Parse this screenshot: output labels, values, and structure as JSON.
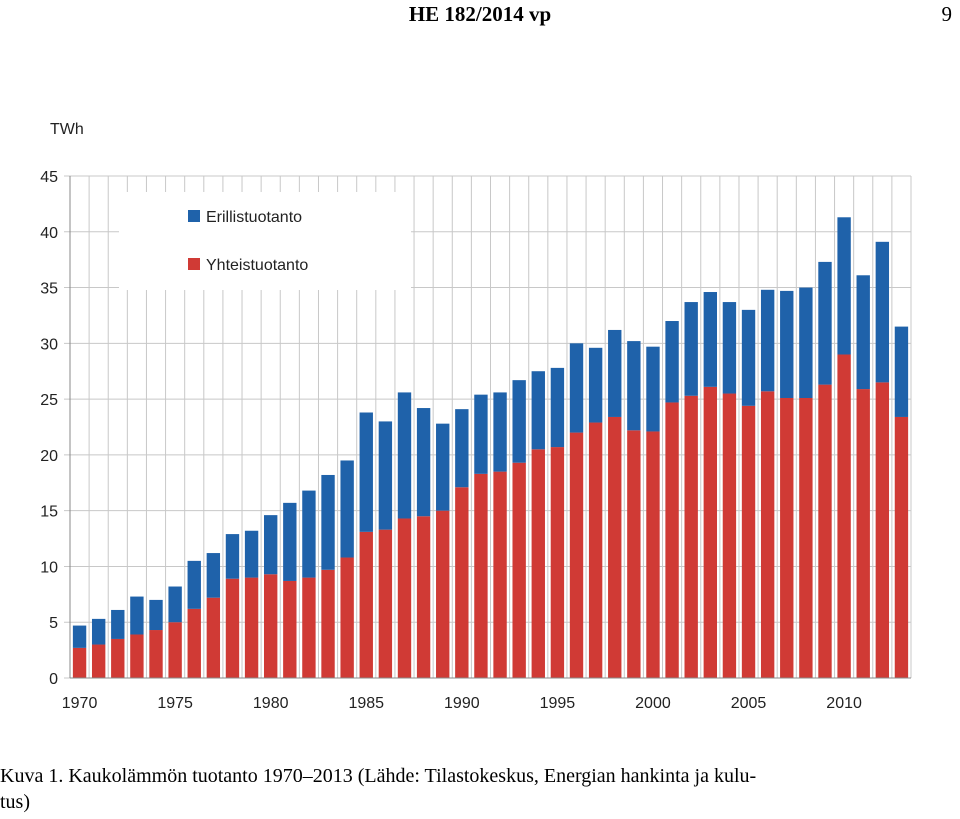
{
  "header": {
    "title": "HE 182/2014 vp",
    "page_number": "9"
  },
  "caption": {
    "text": "Kuva 1. Kaukolämmön tuotanto 1970–2013 (Lähde: Tilastokeskus, Energian hankinta ja kulu-\ntus)"
  },
  "chart_data": {
    "type": "bar",
    "stacked": true,
    "unit_label": "TWh",
    "x": [
      1970,
      1971,
      1972,
      1973,
      1974,
      1975,
      1976,
      1977,
      1978,
      1979,
      1980,
      1981,
      1982,
      1983,
      1984,
      1985,
      1986,
      1987,
      1988,
      1989,
      1990,
      1991,
      1992,
      1993,
      1994,
      1995,
      1996,
      1997,
      1998,
      1999,
      2000,
      2001,
      2002,
      2003,
      2004,
      2005,
      2006,
      2007,
      2008,
      2009,
      2010,
      2011,
      2012,
      2013
    ],
    "x_tick_labels": [
      "1970",
      "1975",
      "1980",
      "1985",
      "1990",
      "1995",
      "2000",
      "2005",
      "2010"
    ],
    "x_tick_values": [
      1970,
      1975,
      1980,
      1985,
      1990,
      1995,
      2000,
      2005,
      2010
    ],
    "ylim": [
      0,
      45
    ],
    "y_ticks": [
      0,
      5,
      10,
      15,
      20,
      25,
      30,
      35,
      40,
      45
    ],
    "grid": true,
    "legend_position": "top-left",
    "series": [
      {
        "name": "Yhteistuotanto",
        "color": "#d03a35",
        "values": [
          2.7,
          3.0,
          3.5,
          3.9,
          4.3,
          5.0,
          6.2,
          7.2,
          8.9,
          9.0,
          9.3,
          8.7,
          9.0,
          9.7,
          10.8,
          13.1,
          13.3,
          14.3,
          14.5,
          15.0,
          17.1,
          18.3,
          18.5,
          19.3,
          20.5,
          20.7,
          22.0,
          22.9,
          23.4,
          22.2,
          22.1,
          24.7,
          25.3,
          26.1,
          25.5,
          24.4,
          25.7,
          25.1,
          25.1,
          26.3,
          29.0,
          25.9,
          26.5,
          23.4
        ]
      },
      {
        "name": "Erillistuotanto",
        "color": "#1f62aa",
        "values": [
          2.0,
          2.3,
          2.6,
          3.4,
          2.7,
          3.2,
          4.3,
          4.0,
          4.0,
          4.2,
          5.3,
          7.0,
          7.8,
          8.5,
          8.7,
          10.7,
          9.7,
          11.3,
          9.7,
          7.8,
          7.0,
          7.1,
          7.1,
          7.4,
          7.0,
          7.1,
          8.0,
          6.7,
          7.8,
          8.0,
          7.6,
          7.3,
          8.4,
          8.5,
          8.2,
          8.6,
          9.1,
          9.6,
          9.9,
          11.0,
          12.3,
          10.2,
          12.6,
          8.1
        ]
      }
    ]
  }
}
